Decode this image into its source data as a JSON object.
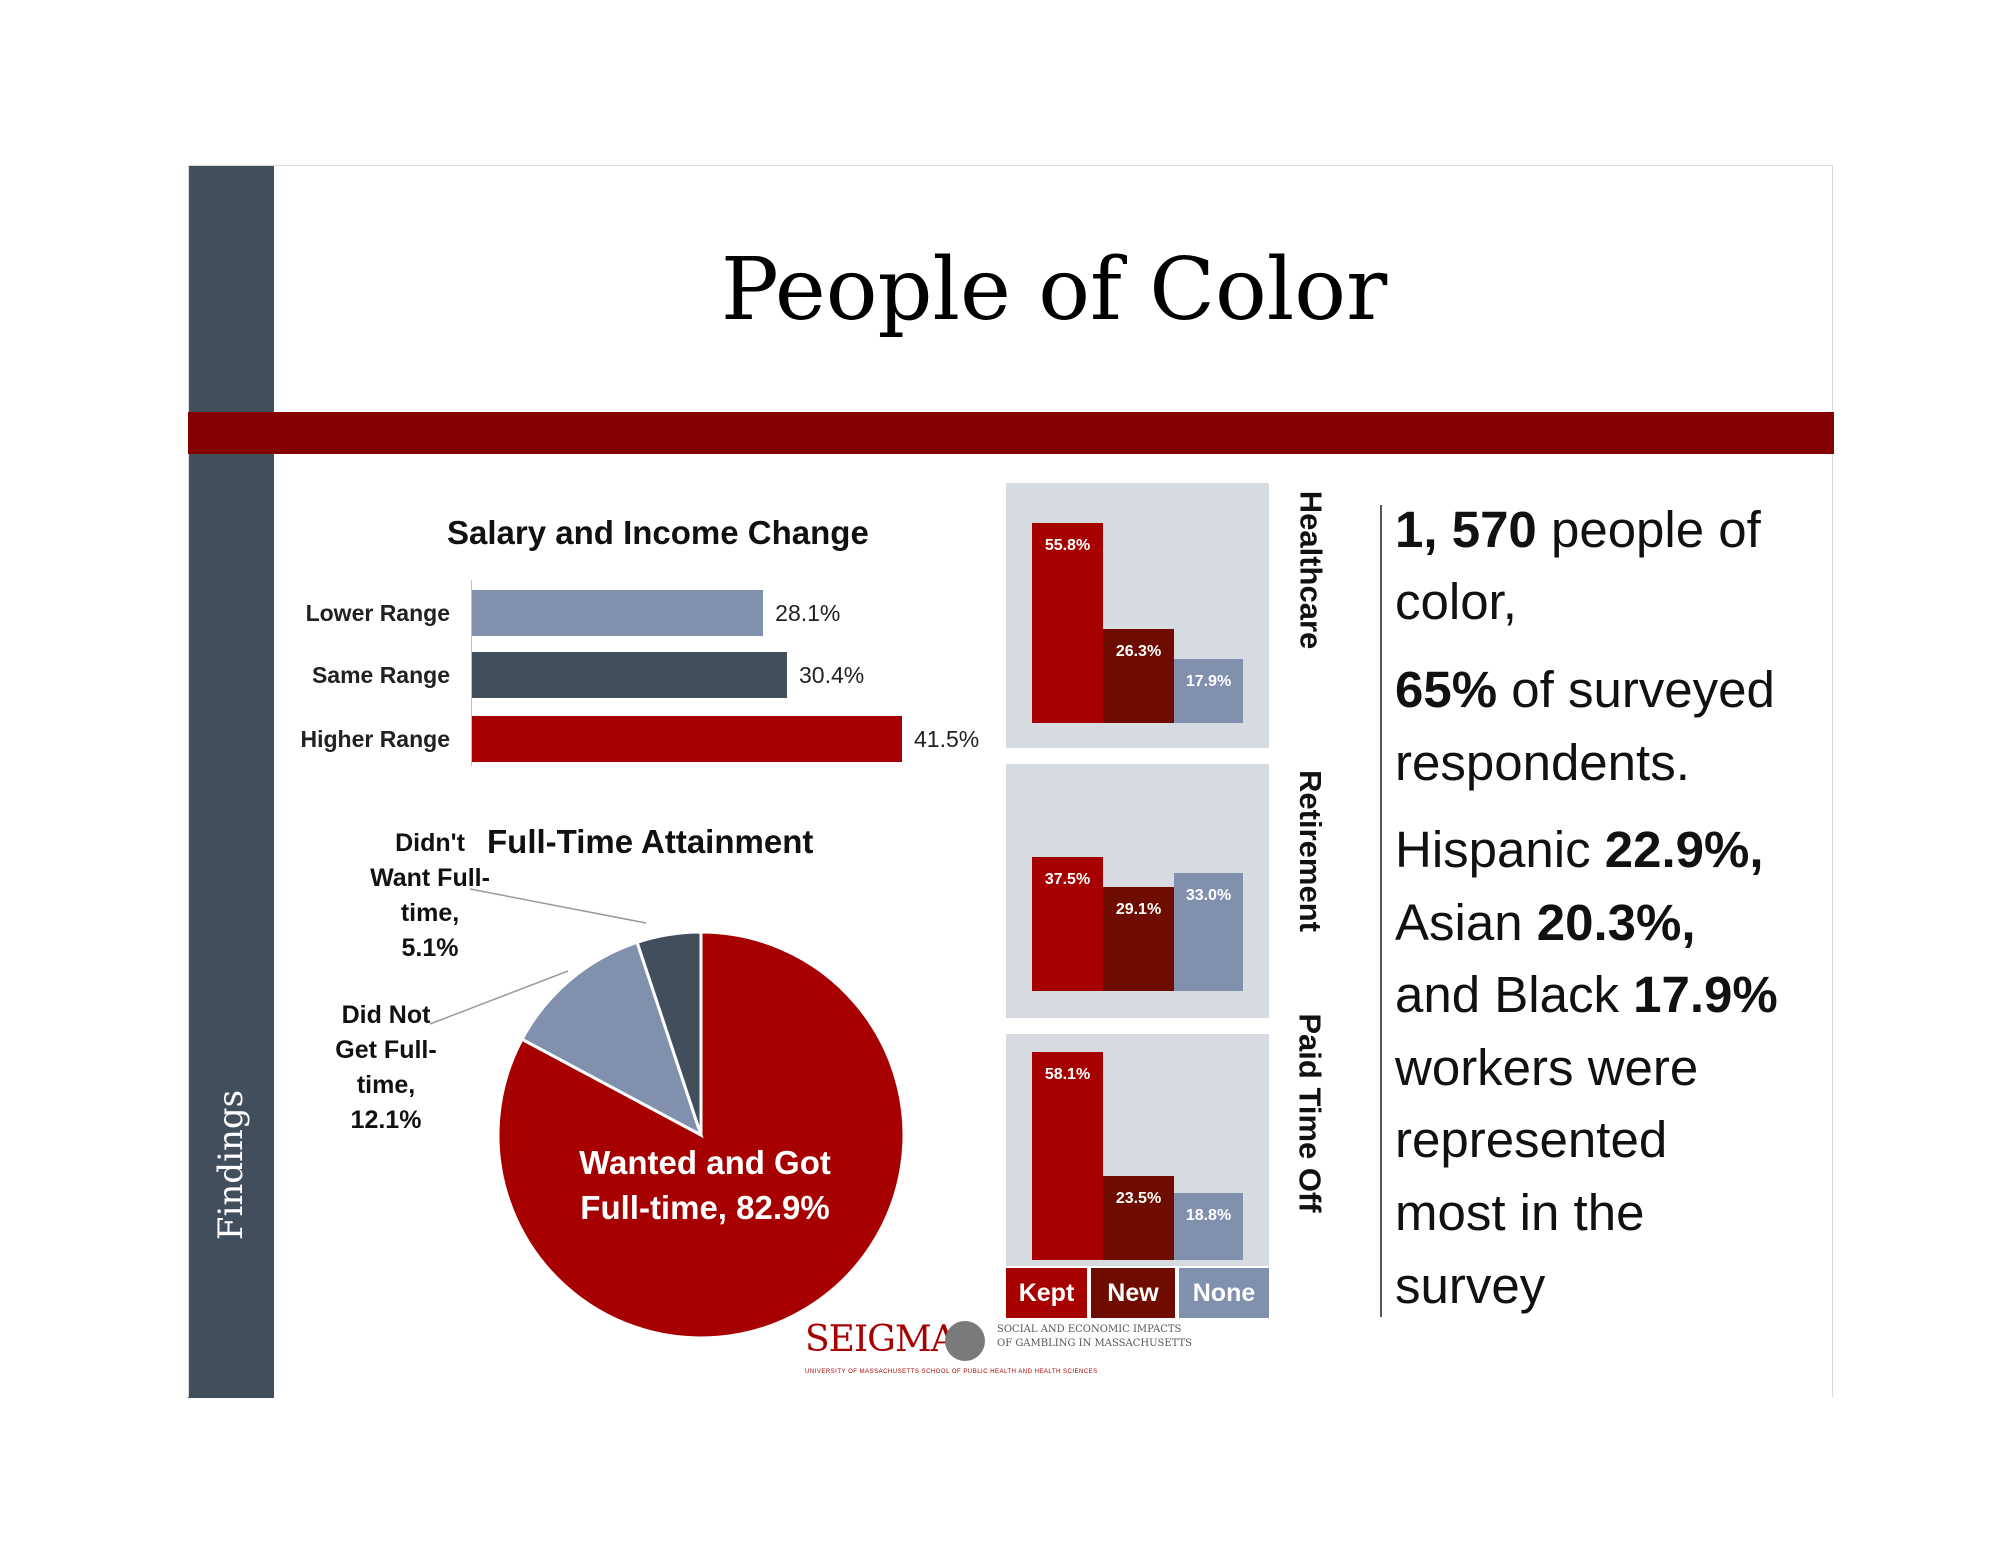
{
  "slide": {
    "title": "People of Color",
    "sidebar_label": "Findings"
  },
  "salary_chart": {
    "title": "Salary and Income Change"
  },
  "pie_chart": {
    "title": "Full-Time Attainment",
    "labels": {
      "didnt_want": [
        "Didn't",
        "Want Full-",
        "time,",
        "5.1%"
      ],
      "did_not_get": [
        "Did Not",
        "Get Full-",
        "time,",
        "12.1%"
      ],
      "wanted_got": [
        "Wanted and Got",
        "Full-time, 82.9%"
      ]
    }
  },
  "benefits": {
    "legend": [
      "Kept",
      "New",
      "None"
    ]
  },
  "summary": {
    "line1_bold": "1, 570",
    "line1_rest": " people of",
    "line2": "color,",
    "line3_bold": "65%",
    "line3_rest": " of surveyed",
    "line4": "respondents.",
    "line5_rest": "Hispanic ",
    "line5_bold": "22.9%,",
    "line6_rest": "Asian ",
    "line6_bold": "20.3%,",
    "line7_rest": "and Black ",
    "line7_bold": "17.9%",
    "line8": "workers were",
    "line9": "represented",
    "line10": "most in the",
    "line11": "survey"
  },
  "logo": {
    "word": "SEIGMA",
    "sub1": "SOCIAL AND ECONOMIC IMPACTS",
    "sub2": "OF GAMBLING IN MASSACHUSETTS",
    "university": "UNIVERSITY OF MASSACHUSETTS SCHOOL OF PUBLIC HEALTH AND HEALTH SCIENCES"
  },
  "colors": {
    "kept_red": "#a60000",
    "new_dark_red": "#6e0c00",
    "none_blue_gray": "#8090ad",
    "slate": "#414e5c",
    "band": "#850000"
  },
  "chart_data": [
    {
      "type": "bar",
      "orientation": "horizontal",
      "title": "Salary and Income Change",
      "categories": [
        "Lower Range",
        "Same Range",
        "Higher Range"
      ],
      "values": [
        28.1,
        30.4,
        41.5
      ],
      "value_labels": [
        "28.1%",
        "30.4%",
        "41.5%"
      ],
      "colors": [
        "#8090ad",
        "#414e5c",
        "#a60000"
      ]
    },
    {
      "type": "pie",
      "title": "Full-Time Attainment",
      "categories": [
        "Wanted and Got Full-time",
        "Did Not Get Full-time",
        "Didn't Want Full-time"
      ],
      "values": [
        82.9,
        12.1,
        5.1
      ],
      "colors": [
        "#a60000",
        "#8090ad",
        "#414e5c"
      ]
    },
    {
      "type": "bar",
      "title": "Healthcare",
      "categories": [
        "Kept",
        "New",
        "None"
      ],
      "values": [
        55.8,
        26.3,
        17.9
      ],
      "value_labels": [
        "55.8%",
        "26.3%",
        "17.9%"
      ]
    },
    {
      "type": "bar",
      "title": "Retirement",
      "categories": [
        "Kept",
        "New",
        "None"
      ],
      "values": [
        37.5,
        29.1,
        33.0
      ],
      "value_labels": [
        "37.5%",
        "29.1%",
        "33.0%"
      ]
    },
    {
      "type": "bar",
      "title": "Paid Time Off",
      "categories": [
        "Kept",
        "New",
        "None"
      ],
      "values": [
        58.1,
        23.5,
        18.8
      ],
      "value_labels": [
        "58.1%",
        "23.5%",
        "18.8%"
      ]
    }
  ]
}
